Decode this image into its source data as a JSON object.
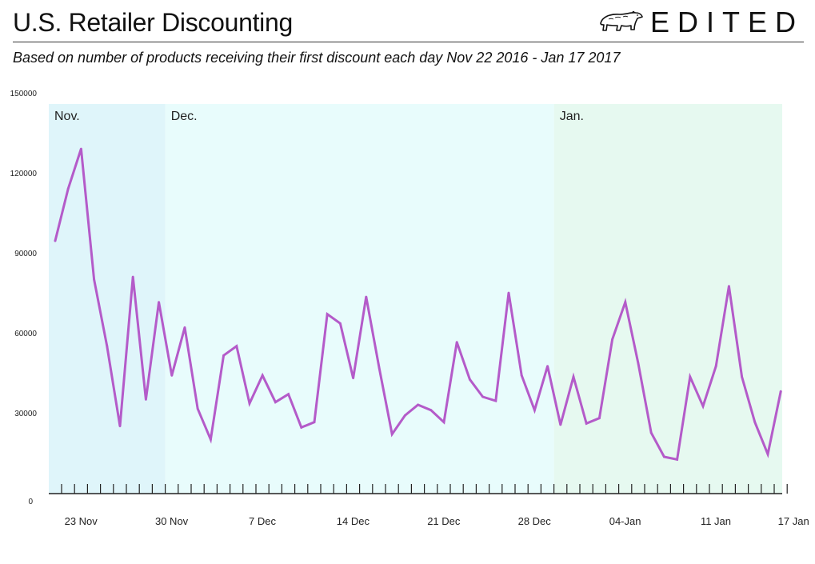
{
  "header": {
    "title": "U.S. Retailer Discounting",
    "subtitle": "Based on number of products receiving their first discount each day Nov 22 2016 - Jan 17 2017",
    "brand": "EDITED"
  },
  "colors": {
    "line": "#b45bc9",
    "band_nov": "#dff5fa",
    "band_dec": "#e8fcfc",
    "band_jan": "#e6f9f0",
    "axis": "#222222"
  },
  "chart_data": {
    "type": "line",
    "title": "U.S. Retailer Discounting",
    "xlabel": "",
    "ylabel": "",
    "ylim": [
      0,
      150000
    ],
    "yticks": [
      "0",
      "30000",
      "60000",
      "90000",
      "120000",
      "150000"
    ],
    "xticks": [
      {
        "index": 1,
        "label": "23 Nov"
      },
      {
        "index": 8,
        "label": "30 Nov"
      },
      {
        "index": 15,
        "label": "7 Dec"
      },
      {
        "index": 22,
        "label": "14 Dec"
      },
      {
        "index": 29,
        "label": "21 Dec"
      },
      {
        "index": 36,
        "label": "28 Dec"
      },
      {
        "index": 43,
        "label": "04-Jan"
      },
      {
        "index": 50,
        "label": "11 Jan"
      },
      {
        "index": 56,
        "label": "17 Jan"
      }
    ],
    "start_date": "2016-11-22",
    "end_date": "2017-01-17",
    "month_bands": [
      {
        "label": "Nov.",
        "start": 0,
        "end": 9
      },
      {
        "label": "Dec.",
        "start": 9,
        "end": 39
      },
      {
        "label": "Jan.",
        "start": 39,
        "end": 57
      }
    ],
    "grid": false,
    "series": [
      {
        "values": [
          94500,
          114000,
          129000,
          80000,
          55000,
          25000,
          81000,
          35000,
          71500,
          44000,
          62000,
          31500,
          20000,
          51500,
          55000,
          33500,
          44000,
          34000,
          37000,
          24500,
          26500,
          67000,
          63500,
          43000,
          73500,
          47000,
          22000,
          29000,
          33000,
          31000,
          26500,
          56500,
          42500,
          36000,
          34500,
          75000,
          44000,
          31000,
          47500,
          25500,
          43500,
          26000,
          28000,
          57500,
          71500,
          48500,
          22500,
          13500,
          12500,
          43500,
          32500,
          47500,
          77500,
          43500,
          26500,
          14500,
          38000
        ]
      }
    ]
  }
}
